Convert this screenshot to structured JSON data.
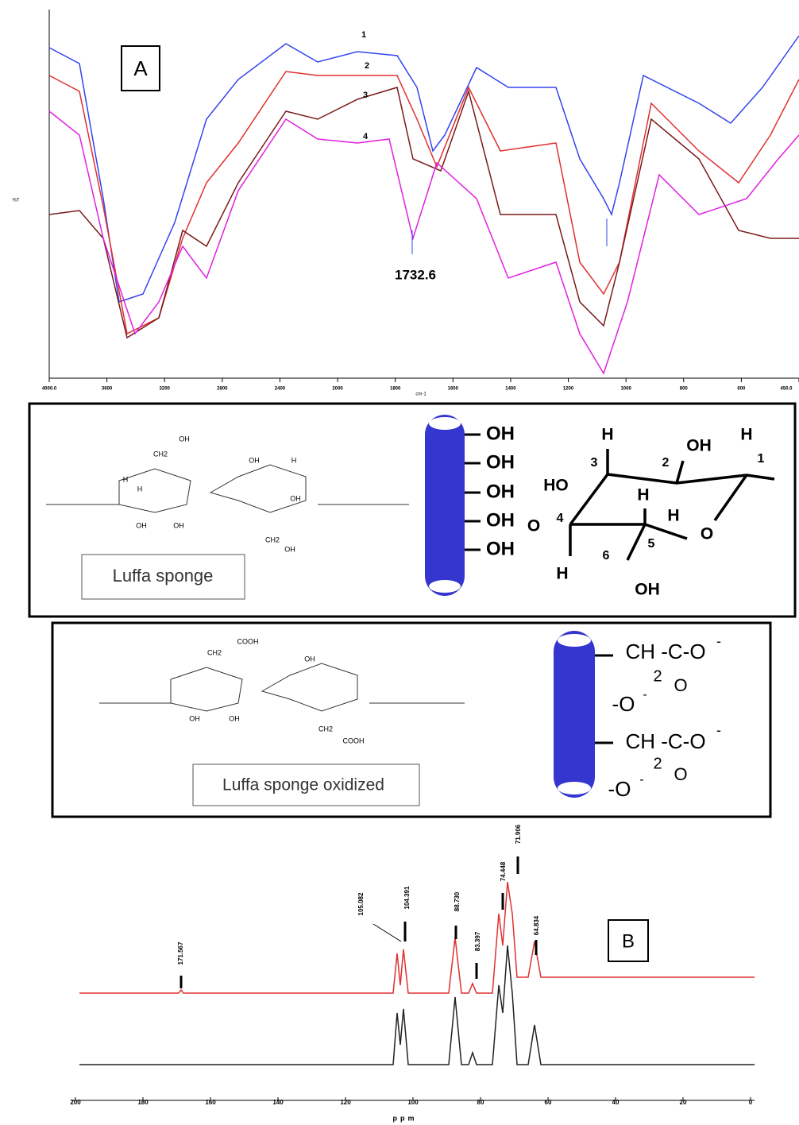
{
  "panel_a": {
    "label": "A",
    "curve_labels": [
      "1",
      "2",
      "3",
      "4"
    ],
    "annotation": "1732.6",
    "y_label": "%T",
    "x_label": "cm-1",
    "x_ticks": [
      "4000.0",
      "3600",
      "3200",
      "2800",
      "2400",
      "2000",
      "1800",
      "1600",
      "1400",
      "1200",
      "1000",
      "800",
      "600",
      "450.0"
    ]
  },
  "structure_1": {
    "caption": "Luffa sponge",
    "sugar_labels": [
      "OH",
      "CH2",
      "H",
      "H",
      "OH",
      "OH",
      "OH",
      "H",
      "OH",
      "CH2",
      "OH"
    ],
    "fiber_groups": [
      "OH",
      "OH",
      "OH",
      "OH",
      "OH"
    ],
    "ring_labels": [
      "H",
      "OH",
      "H",
      "3",
      "2",
      "1",
      "HO",
      "H",
      "H",
      "O",
      "4",
      "5",
      "O",
      "6",
      "H",
      "OH"
    ]
  },
  "structure_2": {
    "caption": "Luffa sponge oxidized",
    "sugar_labels": [
      "COOH",
      "CH2",
      "OH",
      "OH",
      "OH",
      "CH2",
      "COOH"
    ],
    "fiber_groups": [
      "CH -C-O",
      "-",
      "2",
      "O",
      "-O",
      "-",
      "CH -C-O",
      "-",
      "2",
      "O",
      "-O",
      "-"
    ]
  },
  "panel_b": {
    "label": "B",
    "peaks": [
      "171.567",
      "105.082",
      "104.391",
      "88.730",
      "83.397",
      "74.448",
      "71.906",
      "64.834"
    ],
    "x_ticks": [
      "200",
      "180",
      "160",
      "140",
      "120",
      "100",
      "80",
      "60",
      "40",
      "20",
      "0"
    ],
    "x_label": "ppm"
  }
}
